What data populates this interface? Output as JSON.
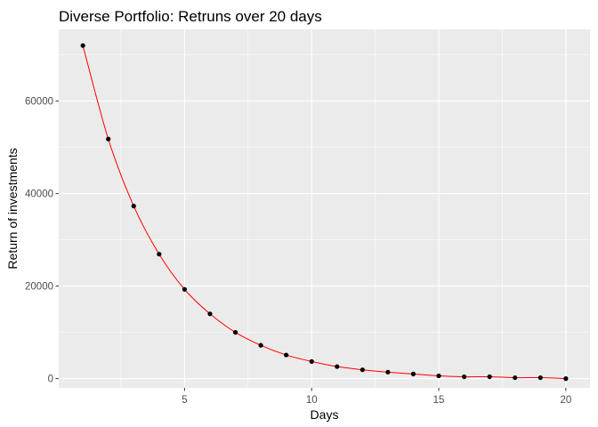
{
  "chart_data": {
    "type": "line",
    "title": "Diverse Portfolio: Retruns over 20 days",
    "xlabel": "Days",
    "ylabel": "Return of investments",
    "xlim": [
      0.05,
      20.95
    ],
    "ylim": [
      -2000,
      75500
    ],
    "x_ticks": [
      5,
      10,
      15,
      20
    ],
    "y_ticks": [
      0,
      20000,
      40000,
      60000
    ],
    "grid": true,
    "legend": "none",
    "line_color": "#ff0000",
    "point_color": "#000000",
    "panel_background": "#ebebeb",
    "series": [
      {
        "x": [
          1,
          2,
          3,
          4,
          5,
          6,
          7,
          8,
          9,
          10,
          11,
          12,
          13,
          14,
          15,
          16,
          17,
          18,
          19,
          20
        ],
        "y": [
          72000,
          51800,
          37300,
          26900,
          19300,
          14000,
          10000,
          7200,
          5100,
          3700,
          2600,
          1900,
          1400,
          1000,
          600,
          400,
          400,
          200,
          200,
          0
        ]
      }
    ]
  }
}
